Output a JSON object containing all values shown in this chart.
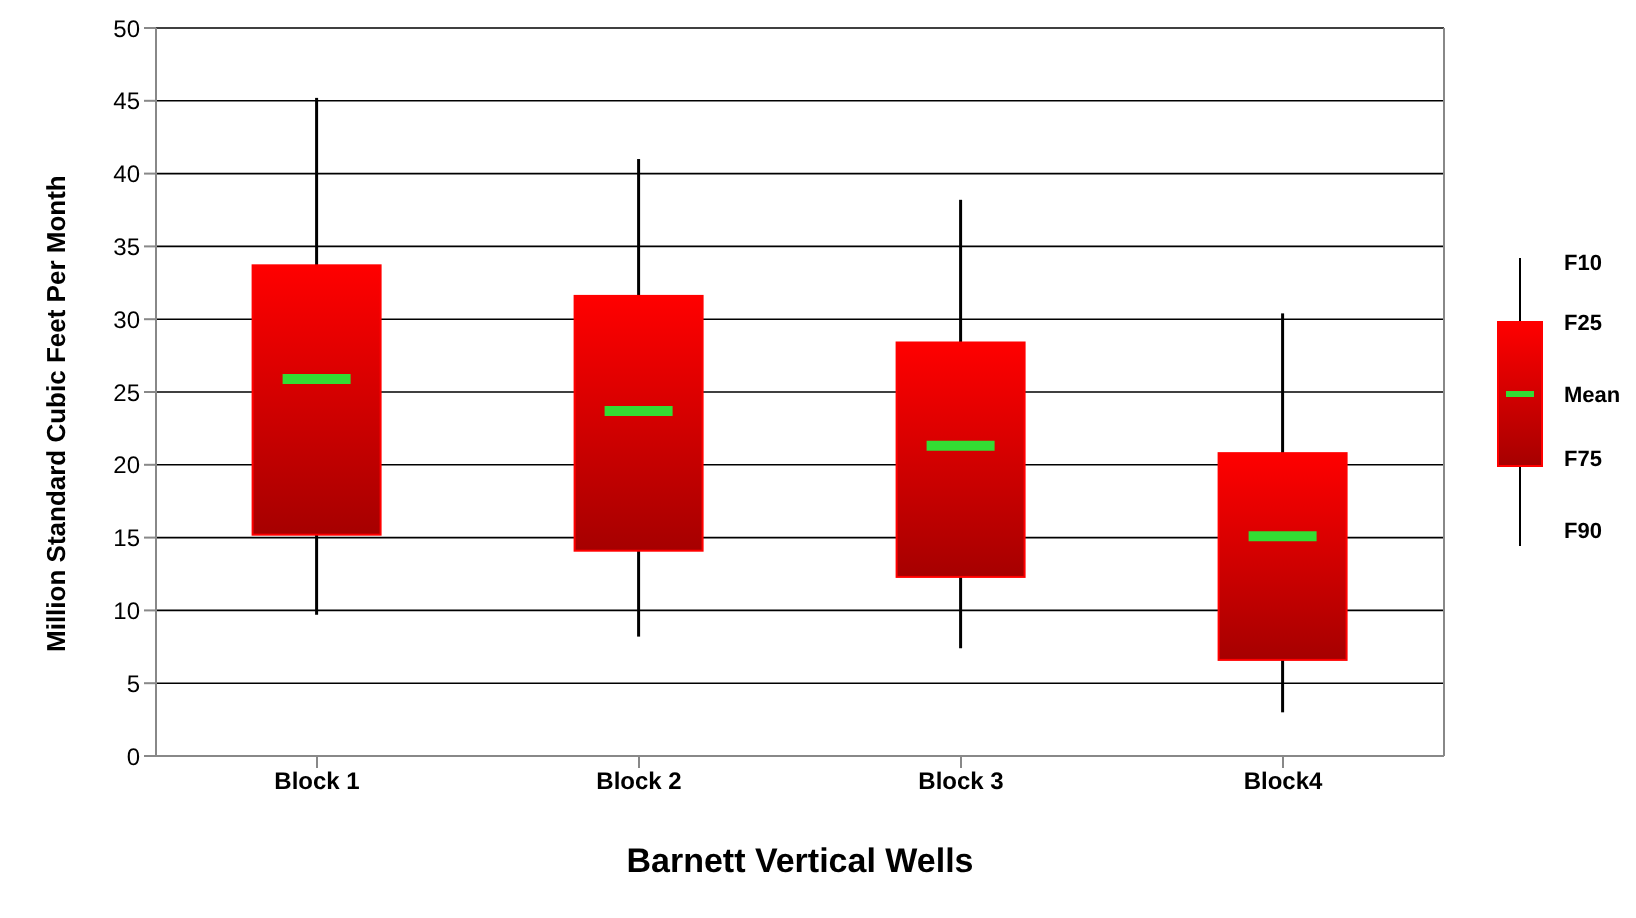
{
  "chart_data": {
    "type": "box",
    "xlabel": "Barnett Vertical Wells",
    "ylabel": "Million Standard Cubic Feet Per Month",
    "categories": [
      "Block 1",
      "Block 2",
      "Block 3",
      "Block4"
    ],
    "series": [
      {
        "color": "#ff0000",
        "boxes": [
          {
            "low": 9.7,
            "q1": 15.2,
            "q3": 33.7,
            "high": 45.2,
            "mean": 25.9
          },
          {
            "low": 8.2,
            "q1": 14.1,
            "q3": 31.6,
            "high": 41,
            "mean": 23.7
          },
          {
            "low": 7.4,
            "q1": 12.3,
            "q3": 28.4,
            "high": 38.2,
            "mean": 21.3
          },
          {
            "low": 3,
            "q1": 6.6,
            "q3": 20.8,
            "high": 30.4,
            "mean": 15.1
          }
        ]
      }
    ],
    "ylim": [
      0,
      50
    ],
    "yticks": [
      0,
      5,
      10,
      15,
      20,
      25,
      30,
      35,
      40,
      45,
      50
    ],
    "grid": "y",
    "annotations": [
      "F10",
      "F25",
      "Mean",
      "F75",
      "F90"
    ]
  }
}
